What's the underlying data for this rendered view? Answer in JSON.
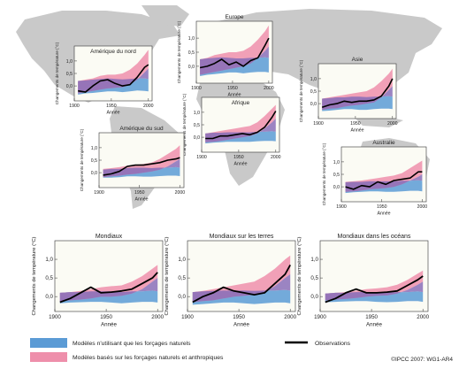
{
  "colors": {
    "natural": "#5b9bd5",
    "combined": "#ee8fab",
    "obs": "#000000",
    "land": "#c9c9c9",
    "ocean": "#ffffff",
    "panel_bg": "#fbfbf4"
  },
  "ylabel": "Changements de température (°C)",
  "xlabel": "Année",
  "legend": {
    "natural": "Modèles n'utilisant que les forçages naturels",
    "combined": "Modèles basés sur les forçages naturels et anthropiques",
    "obs": "Observations"
  },
  "credit": "©IPCC 2007: WG1-AR4",
  "chart_data": [
    {
      "type": "area",
      "title": "Amérique du nord",
      "x": [
        1905,
        1915,
        1925,
        1935,
        1945,
        1955,
        1965,
        1975,
        1985,
        1995,
        2000
      ],
      "natural": {
        "low": [
          -0.35,
          -0.3,
          -0.28,
          -0.25,
          -0.22,
          -0.22,
          -0.25,
          -0.22,
          -0.18,
          -0.2,
          -0.22
        ],
        "high": [
          0.2,
          0.22,
          0.25,
          0.28,
          0.3,
          0.28,
          0.26,
          0.28,
          0.3,
          0.3,
          0.28
        ]
      },
      "combined": {
        "low": [
          -0.3,
          -0.25,
          -0.2,
          -0.15,
          -0.1,
          -0.08,
          -0.05,
          0.05,
          0.25,
          0.55,
          0.7
        ],
        "high": [
          0.2,
          0.25,
          0.3,
          0.4,
          0.45,
          0.45,
          0.5,
          0.65,
          0.9,
          1.25,
          1.45
        ]
      },
      "obs": [
        -0.2,
        -0.25,
        0.0,
        0.2,
        0.25,
        0.1,
        0.0,
        0.05,
        0.35,
        0.75,
        0.85
      ],
      "ylim": [
        -0.6,
        1.6
      ],
      "yticks": [
        0.0,
        0.5,
        1.0
      ],
      "xticks": [
        1900,
        1950,
        2000
      ]
    },
    {
      "type": "area",
      "title": "Europe",
      "x": [
        1905,
        1915,
        1925,
        1935,
        1945,
        1955,
        1965,
        1975,
        1985,
        1995,
        2000
      ],
      "natural": {
        "low": [
          -0.35,
          -0.3,
          -0.28,
          -0.25,
          -0.22,
          -0.22,
          -0.25,
          -0.22,
          -0.2,
          -0.2,
          -0.22
        ],
        "high": [
          0.25,
          0.28,
          0.3,
          0.32,
          0.3,
          0.28,
          0.28,
          0.3,
          0.3,
          0.32,
          0.3
        ]
      },
      "combined": {
        "low": [
          -0.3,
          -0.25,
          -0.2,
          -0.15,
          -0.1,
          -0.05,
          0.0,
          0.1,
          0.3,
          0.55,
          0.7
        ],
        "high": [
          0.25,
          0.3,
          0.4,
          0.45,
          0.5,
          0.5,
          0.55,
          0.7,
          0.95,
          1.25,
          1.45
        ]
      },
      "obs": [
        -0.05,
        0.0,
        0.1,
        0.25,
        0.05,
        0.15,
        0.0,
        0.2,
        0.3,
        0.75,
        1.0
      ],
      "ylim": [
        -0.6,
        1.6
      ],
      "yticks": [
        0.0,
        0.5,
        1.0
      ],
      "xticks": [
        1900,
        1950,
        2000
      ]
    },
    {
      "type": "area",
      "title": "Asie",
      "x": [
        1905,
        1915,
        1925,
        1935,
        1945,
        1955,
        1965,
        1975,
        1985,
        1995,
        2000
      ],
      "natural": {
        "low": [
          -0.3,
          -0.28,
          -0.25,
          -0.22,
          -0.22,
          -0.25,
          -0.25,
          -0.22,
          -0.2,
          -0.2,
          -0.22
        ],
        "high": [
          0.2,
          0.22,
          0.25,
          0.25,
          0.28,
          0.28,
          0.26,
          0.28,
          0.28,
          0.3,
          0.28
        ]
      },
      "combined": {
        "low": [
          -0.25,
          -0.2,
          -0.18,
          -0.12,
          -0.08,
          -0.05,
          0.0,
          0.05,
          0.25,
          0.55,
          0.7
        ],
        "high": [
          0.2,
          0.25,
          0.3,
          0.35,
          0.4,
          0.45,
          0.5,
          0.65,
          0.9,
          1.2,
          1.4
        ]
      },
      "obs": [
        -0.15,
        -0.05,
        0.0,
        0.1,
        0.05,
        0.1,
        0.1,
        0.15,
        0.3,
        0.7,
        1.0
      ],
      "ylim": [
        -0.6,
        1.6
      ],
      "yticks": [
        0.0,
        0.5,
        1.0
      ],
      "xticks": [
        1900,
        1950,
        2000
      ]
    },
    {
      "type": "area",
      "title": "Afrique",
      "x": [
        1905,
        1915,
        1925,
        1935,
        1945,
        1955,
        1965,
        1975,
        1985,
        1995,
        2000
      ],
      "natural": {
        "low": [
          -0.25,
          -0.22,
          -0.2,
          -0.18,
          -0.18,
          -0.18,
          -0.18,
          -0.16,
          -0.15,
          -0.15,
          -0.16
        ],
        "high": [
          0.15,
          0.18,
          0.18,
          0.2,
          0.2,
          0.2,
          0.2,
          0.22,
          0.22,
          0.24,
          0.22
        ]
      },
      "combined": {
        "low": [
          -0.2,
          -0.18,
          -0.15,
          -0.1,
          -0.05,
          0.0,
          0.05,
          0.15,
          0.35,
          0.6,
          0.75
        ],
        "high": [
          0.15,
          0.2,
          0.25,
          0.3,
          0.35,
          0.4,
          0.45,
          0.6,
          0.85,
          1.15,
          1.3
        ]
      },
      "obs": [
        -0.05,
        -0.05,
        0.05,
        0.05,
        0.1,
        0.15,
        0.1,
        0.2,
        0.4,
        0.8,
        1.05
      ],
      "ylim": [
        -0.6,
        1.6
      ],
      "yticks": [
        0.0,
        0.5,
        1.0
      ],
      "xticks": [
        1900,
        1950,
        2000
      ]
    },
    {
      "type": "area",
      "title": "Amérique du sud",
      "x": [
        1905,
        1915,
        1925,
        1935,
        1945,
        1955,
        1965,
        1975,
        1985,
        1995,
        2000
      ],
      "natural": {
        "low": [
          -0.2,
          -0.2,
          -0.18,
          -0.15,
          -0.15,
          -0.16,
          -0.16,
          -0.14,
          -0.12,
          -0.12,
          -0.14
        ],
        "high": [
          0.12,
          0.15,
          0.15,
          0.18,
          0.2,
          0.2,
          0.18,
          0.2,
          0.2,
          0.22,
          0.2
        ]
      },
      "combined": {
        "low": [
          -0.18,
          -0.15,
          -0.12,
          -0.08,
          -0.05,
          0.0,
          0.05,
          0.12,
          0.25,
          0.45,
          0.55
        ],
        "high": [
          0.15,
          0.18,
          0.22,
          0.28,
          0.32,
          0.35,
          0.4,
          0.55,
          0.75,
          0.95,
          1.1
        ]
      },
      "obs": [
        -0.1,
        -0.05,
        0.05,
        0.25,
        0.3,
        0.3,
        0.35,
        0.4,
        0.5,
        0.55,
        0.6
      ],
      "ylim": [
        -0.6,
        1.6
      ],
      "yticks": [
        0.0,
        0.5,
        1.0
      ],
      "xticks": [
        1900,
        1950,
        2000
      ]
    },
    {
      "type": "area",
      "title": "Australie",
      "x": [
        1905,
        1915,
        1925,
        1935,
        1945,
        1955,
        1965,
        1975,
        1985,
        1995,
        2000
      ],
      "natural": {
        "low": [
          -0.25,
          -0.22,
          -0.2,
          -0.18,
          -0.18,
          -0.2,
          -0.2,
          -0.18,
          -0.16,
          -0.16,
          -0.18
        ],
        "high": [
          0.18,
          0.2,
          0.2,
          0.22,
          0.22,
          0.22,
          0.22,
          0.24,
          0.24,
          0.26,
          0.24
        ]
      },
      "combined": {
        "low": [
          -0.2,
          -0.18,
          -0.15,
          -0.1,
          -0.08,
          -0.05,
          0.0,
          0.1,
          0.25,
          0.4,
          0.5
        ],
        "high": [
          0.2,
          0.22,
          0.25,
          0.3,
          0.35,
          0.4,
          0.45,
          0.55,
          0.75,
          0.95,
          1.05
        ]
      },
      "obs": [
        0.0,
        -0.1,
        0.05,
        0.0,
        0.2,
        0.1,
        0.25,
        0.3,
        0.35,
        0.6,
        0.6
      ],
      "ylim": [
        -0.6,
        1.6
      ],
      "yticks": [
        0.0,
        0.5,
        1.0
      ],
      "xticks": [
        1900,
        1950,
        2000
      ]
    },
    {
      "type": "area",
      "title": "Mondiaux",
      "x": [
        1905,
        1915,
        1925,
        1935,
        1945,
        1955,
        1965,
        1975,
        1985,
        1995,
        2000
      ],
      "natural": {
        "low": [
          -0.18,
          -0.16,
          -0.15,
          -0.14,
          -0.14,
          -0.16,
          -0.18,
          -0.16,
          -0.14,
          -0.14,
          -0.16
        ],
        "high": [
          0.1,
          0.12,
          0.12,
          0.14,
          0.14,
          0.14,
          0.12,
          0.14,
          0.14,
          0.16,
          0.14
        ]
      },
      "combined": {
        "low": [
          -0.12,
          -0.1,
          -0.08,
          -0.05,
          0.0,
          0.0,
          0.02,
          0.08,
          0.2,
          0.4,
          0.5
        ],
        "high": [
          0.1,
          0.12,
          0.15,
          0.2,
          0.25,
          0.28,
          0.3,
          0.4,
          0.55,
          0.75,
          0.85
        ]
      },
      "obs": [
        -0.15,
        -0.05,
        0.1,
        0.25,
        0.1,
        0.12,
        0.15,
        0.2,
        0.35,
        0.5,
        0.65
      ],
      "ylim": [
        -0.4,
        1.5
      ],
      "yticks": [
        0.0,
        0.5,
        1.0
      ],
      "xticks": [
        1900,
        1950,
        2000
      ]
    },
    {
      "type": "area",
      "title": "Mondiaux sur les terres",
      "x": [
        1905,
        1915,
        1925,
        1935,
        1945,
        1955,
        1965,
        1975,
        1985,
        1995,
        2000
      ],
      "natural": {
        "low": [
          -0.22,
          -0.2,
          -0.18,
          -0.16,
          -0.16,
          -0.18,
          -0.2,
          -0.18,
          -0.16,
          -0.16,
          -0.18
        ],
        "high": [
          0.12,
          0.14,
          0.15,
          0.16,
          0.16,
          0.16,
          0.15,
          0.16,
          0.16,
          0.18,
          0.16
        ]
      },
      "combined": {
        "low": [
          -0.15,
          -0.12,
          -0.1,
          -0.05,
          0.0,
          0.02,
          0.05,
          0.12,
          0.28,
          0.5,
          0.6
        ],
        "high": [
          0.12,
          0.15,
          0.2,
          0.25,
          0.3,
          0.35,
          0.4,
          0.55,
          0.75,
          1.0,
          1.1
        ]
      },
      "obs": [
        -0.15,
        0.0,
        0.1,
        0.25,
        0.15,
        0.1,
        0.05,
        0.1,
        0.35,
        0.6,
        0.85
      ],
      "ylim": [
        -0.4,
        1.5
      ],
      "yticks": [
        0.0,
        0.5,
        1.0
      ],
      "xticks": [
        1900,
        1950,
        2000
      ]
    },
    {
      "type": "area",
      "title": "Mondiaux dans les océans",
      "x": [
        1905,
        1915,
        1925,
        1935,
        1945,
        1955,
        1965,
        1975,
        1985,
        1995,
        2000
      ],
      "natural": {
        "low": [
          -0.15,
          -0.14,
          -0.13,
          -0.12,
          -0.12,
          -0.14,
          -0.15,
          -0.14,
          -0.12,
          -0.12,
          -0.14
        ],
        "high": [
          0.08,
          0.1,
          0.1,
          0.12,
          0.12,
          0.12,
          0.11,
          0.12,
          0.12,
          0.14,
          0.12
        ]
      },
      "combined": {
        "low": [
          -0.1,
          -0.08,
          -0.06,
          -0.04,
          0.0,
          0.02,
          0.03,
          0.08,
          0.18,
          0.32,
          0.4
        ],
        "high": [
          0.08,
          0.1,
          0.12,
          0.16,
          0.2,
          0.22,
          0.25,
          0.32,
          0.45,
          0.62,
          0.7
        ]
      },
      "obs": [
        -0.15,
        -0.05,
        0.1,
        0.2,
        0.1,
        0.1,
        0.12,
        0.15,
        0.3,
        0.45,
        0.55
      ],
      "ylim": [
        -0.4,
        1.5
      ],
      "yticks": [
        0.0,
        0.5,
        1.0
      ],
      "xticks": [
        1900,
        1950,
        2000
      ]
    }
  ]
}
